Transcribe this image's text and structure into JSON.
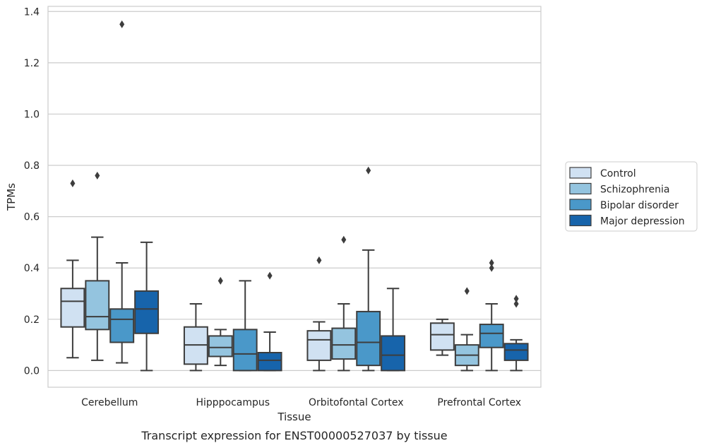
{
  "chart_data": {
    "type": "boxplot",
    "title": "Transcript expression for ENST00000527037 by tissue",
    "xlabel": "Tissue",
    "ylabel": "TPMs",
    "ylim": [
      -0.065,
      1.42
    ],
    "yticks": [
      0.0,
      0.2,
      0.4,
      0.6,
      0.8,
      1.0,
      1.2,
      1.4
    ],
    "ytick_labels": [
      "0.0",
      "0.2",
      "0.4",
      "0.6",
      "0.8",
      "1.0",
      "1.2",
      "1.4"
    ],
    "grid": "horizontal",
    "legend_position": "right",
    "categories": [
      "Cerebellum",
      "Hipppocampus",
      "Orbitofontal Cortex",
      "Prefrontal Cortex"
    ],
    "series": [
      {
        "name": "Control",
        "color": "#d0e1f2",
        "boxes": [
          {
            "whisker_low": 0.05,
            "q1": 0.17,
            "median": 0.27,
            "q3": 0.32,
            "whisker_high": 0.43,
            "outliers": [
              0.73
            ]
          },
          {
            "whisker_low": 0.0,
            "q1": 0.025,
            "median": 0.1,
            "q3": 0.17,
            "whisker_high": 0.26,
            "outliers": []
          },
          {
            "whisker_low": 0.0,
            "q1": 0.04,
            "median": 0.12,
            "q3": 0.155,
            "whisker_high": 0.19,
            "outliers": [
              0.43
            ]
          },
          {
            "whisker_low": 0.06,
            "q1": 0.08,
            "median": 0.14,
            "q3": 0.185,
            "whisker_high": 0.2,
            "outliers": []
          }
        ]
      },
      {
        "name": "Schizophrenia",
        "color": "#94c4df",
        "boxes": [
          {
            "whisker_low": 0.04,
            "q1": 0.16,
            "median": 0.21,
            "q3": 0.35,
            "whisker_high": 0.52,
            "outliers": [
              0.76
            ]
          },
          {
            "whisker_low": 0.02,
            "q1": 0.055,
            "median": 0.09,
            "q3": 0.135,
            "whisker_high": 0.16,
            "outliers": [
              0.35
            ]
          },
          {
            "whisker_low": 0.0,
            "q1": 0.045,
            "median": 0.1,
            "q3": 0.165,
            "whisker_high": 0.26,
            "outliers": [
              0.51
            ]
          },
          {
            "whisker_low": 0.0,
            "q1": 0.02,
            "median": 0.06,
            "q3": 0.1,
            "whisker_high": 0.14,
            "outliers": [
              0.31
            ]
          }
        ]
      },
      {
        "name": "Bipolar disorder",
        "color": "#4a98c9",
        "boxes": [
          {
            "whisker_low": 0.03,
            "q1": 0.11,
            "median": 0.2,
            "q3": 0.24,
            "whisker_high": 0.42,
            "outliers": [
              1.35
            ]
          },
          {
            "whisker_low": 0.0,
            "q1": 0.0,
            "median": 0.065,
            "q3": 0.16,
            "whisker_high": 0.35,
            "outliers": []
          },
          {
            "whisker_low": 0.0,
            "q1": 0.02,
            "median": 0.11,
            "q3": 0.23,
            "whisker_high": 0.47,
            "outliers": [
              0.78
            ]
          },
          {
            "whisker_low": 0.0,
            "q1": 0.09,
            "median": 0.145,
            "q3": 0.18,
            "whisker_high": 0.26,
            "outliers": [
              0.4,
              0.42
            ]
          }
        ]
      },
      {
        "name": "Major depression",
        "color": "#1764ab",
        "boxes": [
          {
            "whisker_low": 0.0,
            "q1": 0.145,
            "median": 0.24,
            "q3": 0.31,
            "whisker_high": 0.5,
            "outliers": []
          },
          {
            "whisker_low": 0.0,
            "q1": 0.0,
            "median": 0.04,
            "q3": 0.07,
            "whisker_high": 0.15,
            "outliers": [
              0.37
            ]
          },
          {
            "whisker_low": 0.0,
            "q1": 0.0,
            "median": 0.06,
            "q3": 0.135,
            "whisker_high": 0.32,
            "outliers": []
          },
          {
            "whisker_low": 0.0,
            "q1": 0.04,
            "median": 0.08,
            "q3": 0.105,
            "whisker_high": 0.12,
            "outliers": [
              0.26,
              0.28
            ]
          }
        ]
      }
    ]
  }
}
